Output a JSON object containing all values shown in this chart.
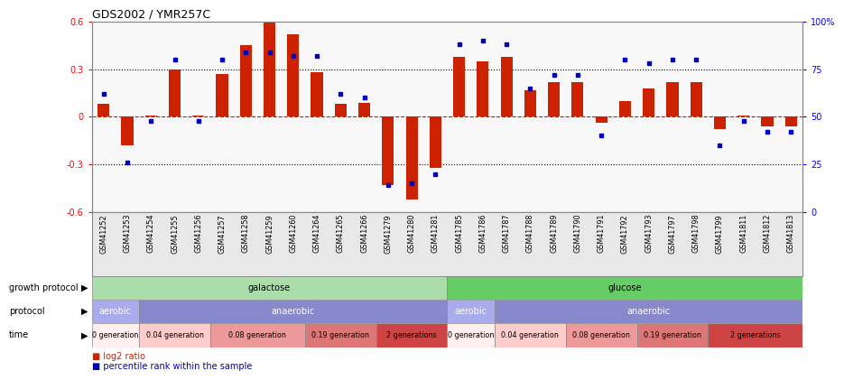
{
  "title": "GDS2002 / YMR257C",
  "samples": [
    "GSM41252",
    "GSM41253",
    "GSM41254",
    "GSM41255",
    "GSM41256",
    "GSM41257",
    "GSM41258",
    "GSM41259",
    "GSM41260",
    "GSM41264",
    "GSM41265",
    "GSM41266",
    "GSM41279",
    "GSM41280",
    "GSM41281",
    "GSM41785",
    "GSM41786",
    "GSM41787",
    "GSM41788",
    "GSM41789",
    "GSM41790",
    "GSM41791",
    "GSM41792",
    "GSM41793",
    "GSM41797",
    "GSM41798",
    "GSM41799",
    "GSM41811",
    "GSM41812",
    "GSM41813"
  ],
  "log2_ratio": [
    0.08,
    -0.18,
    0.01,
    0.3,
    0.01,
    0.27,
    0.45,
    0.6,
    0.52,
    0.28,
    0.08,
    0.09,
    -0.43,
    -0.52,
    -0.32,
    0.38,
    0.35,
    0.38,
    0.17,
    0.22,
    0.22,
    -0.04,
    0.1,
    0.18,
    0.22,
    0.22,
    -0.08,
    0.01,
    -0.06,
    -0.06
  ],
  "percentile": [
    62,
    26,
    48,
    80,
    48,
    80,
    84,
    84,
    82,
    82,
    62,
    60,
    14,
    15,
    20,
    88,
    90,
    88,
    65,
    72,
    72,
    40,
    80,
    78,
    80,
    80,
    35,
    48,
    42,
    42
  ],
  "bar_color": "#cc2200",
  "dot_color": "#0000bb",
  "growth_protocol_row": {
    "label": "growth protocol",
    "groups": [
      {
        "text": "galactose",
        "start": 0,
        "end": 14,
        "color": "#aaddaa"
      },
      {
        "text": "glucose",
        "start": 15,
        "end": 29,
        "color": "#66cc66"
      }
    ]
  },
  "protocol_row": {
    "label": "protocol",
    "groups": [
      {
        "text": "aerobic",
        "start": 0,
        "end": 1,
        "color": "#aaaaee"
      },
      {
        "text": "anaerobic",
        "start": 2,
        "end": 14,
        "color": "#8888cc"
      },
      {
        "text": "aerobic",
        "start": 15,
        "end": 16,
        "color": "#aaaaee"
      },
      {
        "text": "anaerobic",
        "start": 17,
        "end": 29,
        "color": "#8888cc"
      }
    ]
  },
  "time_row": {
    "label": "time",
    "groups": [
      {
        "text": "0 generation",
        "start": 0,
        "end": 1,
        "color": "#ffeeee"
      },
      {
        "text": "0.04 generation",
        "start": 2,
        "end": 4,
        "color": "#ffcccc"
      },
      {
        "text": "0.08 generation",
        "start": 5,
        "end": 8,
        "color": "#ee9999"
      },
      {
        "text": "0.19 generation",
        "start": 9,
        "end": 11,
        "color": "#dd7777"
      },
      {
        "text": "2 generations",
        "start": 12,
        "end": 14,
        "color": "#cc4444"
      },
      {
        "text": "0 generation",
        "start": 15,
        "end": 16,
        "color": "#ffeeee"
      },
      {
        "text": "0.04 generation",
        "start": 17,
        "end": 19,
        "color": "#ffcccc"
      },
      {
        "text": "0.08 generation",
        "start": 20,
        "end": 22,
        "color": "#ee9999"
      },
      {
        "text": "0.19 generation",
        "start": 23,
        "end": 25,
        "color": "#dd7777"
      },
      {
        "text": "2 generations",
        "start": 26,
        "end": 29,
        "color": "#cc4444"
      }
    ]
  },
  "legend": [
    {
      "label": "log2 ratio",
      "color": "#cc2200"
    },
    {
      "label": "percentile rank within the sample",
      "color": "#0000bb"
    }
  ]
}
